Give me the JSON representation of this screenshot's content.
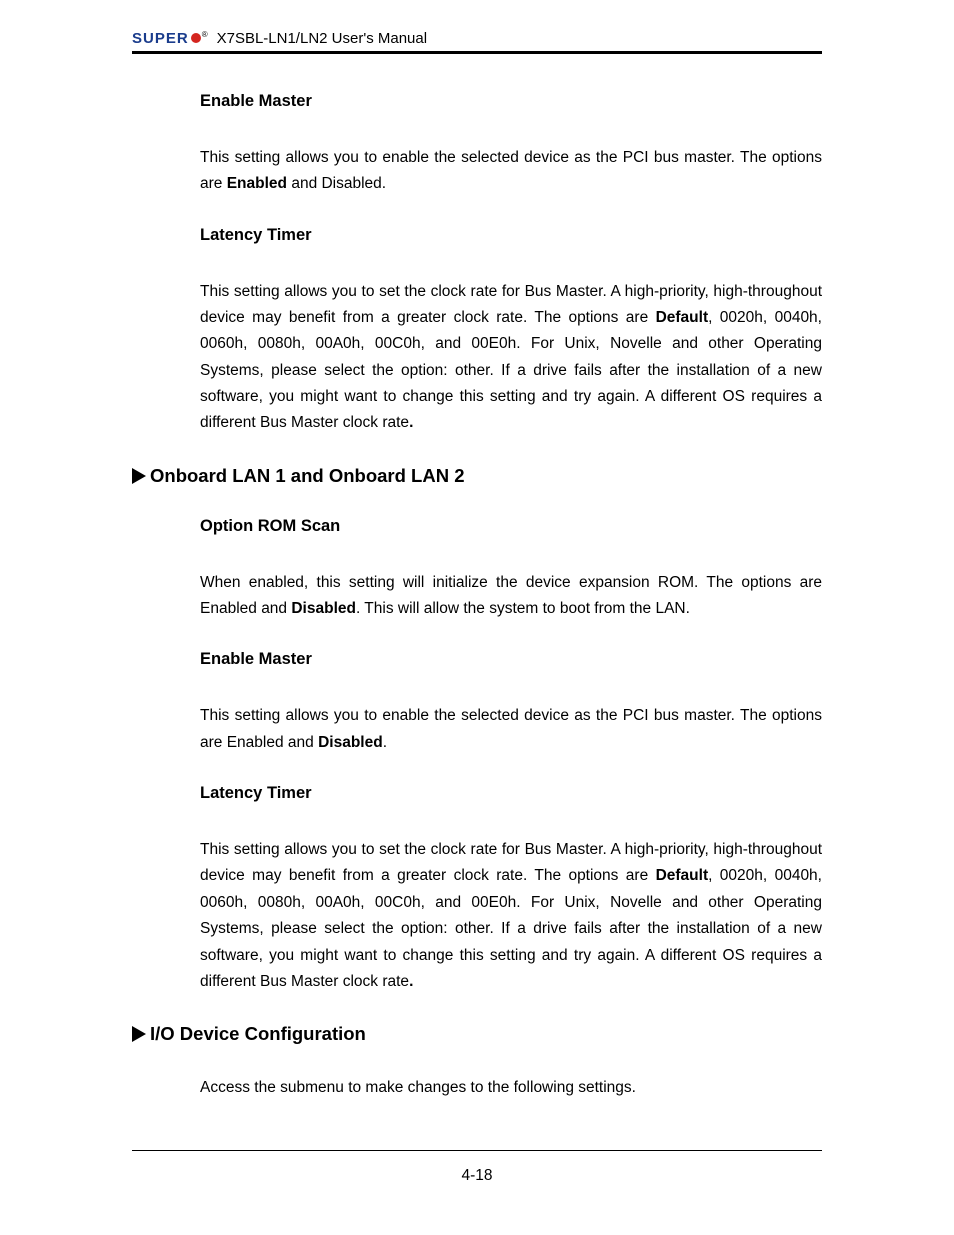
{
  "header": {
    "logo_text": "SUPER",
    "trademark": "®",
    "title": "X7SBL-LN1/LN2 User's Manual"
  },
  "sections": {
    "enable_master_1": {
      "heading": "Enable Master",
      "text_before": "This setting allows you to enable the selected device as the PCI bus master. The options are ",
      "bold": "Enabled",
      "text_after": " and Disabled."
    },
    "latency_timer_1": {
      "heading": "Latency Timer",
      "text_before": "This setting allows you to set the clock rate for Bus Master. A high-priority, high-throughout device may benefit from a greater clock rate. The options are ",
      "bold1": "Default",
      "text_mid": ", 0020h, 0040h, 0060h, 0080h, 00A0h, 00C0h, and 00E0h. For Unix, Novelle and other Operating Systems, please select the option: other. If a drive fails after the installation of a new software, you might want to change this setting and try again. A different OS requires a different Bus Master clock rate",
      "bold2": "."
    },
    "onboard_lan": {
      "heading": "Onboard LAN 1 and Onboard LAN 2"
    },
    "option_rom": {
      "heading": "Option ROM Scan",
      "text_before": "When enabled, this setting will initialize the device expansion ROM. The options are Enabled and ",
      "bold": "Disabled",
      "text_after": ". This will allow the system to boot from the LAN."
    },
    "enable_master_2": {
      "heading": "Enable Master",
      "text_before": "This setting allows you to enable the selected device as the PCI bus master. The options are Enabled and ",
      "bold": "Disabled",
      "text_after": "."
    },
    "latency_timer_2": {
      "heading": "Latency Timer",
      "text_before": "This setting allows you to set the clock rate for Bus Master. A high-priority, high-throughout device may benefit from a greater clock rate. The options are ",
      "bold1": "Default",
      "text_mid": ", 0020h, 0040h, 0060h, 0080h, 00A0h, 00C0h, and 00E0h. For Unix, Novelle and other Operating Systems, please select the option: other. If a drive fails after the installation of a new software, you might want to change this setting and try again. A different OS requires a different Bus Master clock rate",
      "bold2": "."
    },
    "io_device": {
      "heading": "I/O Device Configuration",
      "text": "Access the submenu to make changes to the following settings."
    }
  },
  "footer": {
    "page_number": "4-18"
  }
}
